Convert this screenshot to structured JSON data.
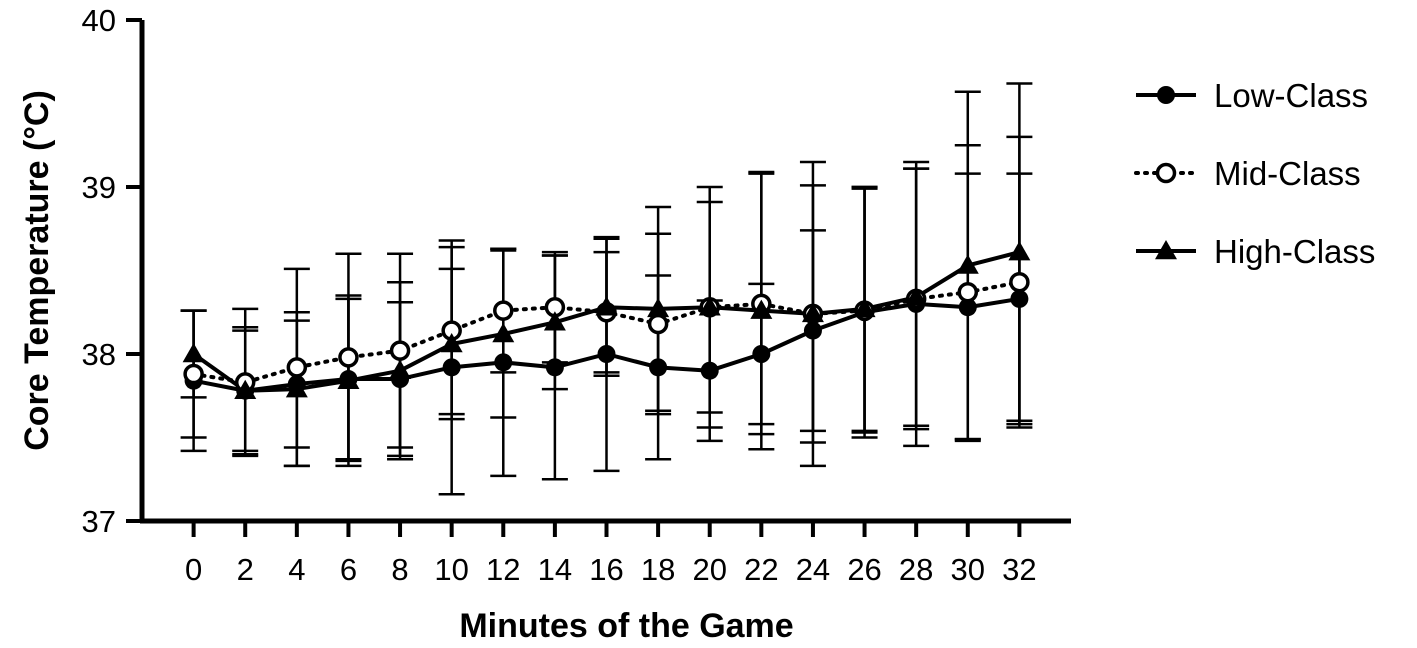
{
  "chart_data": {
    "type": "line",
    "title": "",
    "xlabel": "Minutes of the Game",
    "ylabel": "Core Temperature (°C)",
    "x": [
      0,
      2,
      4,
      6,
      8,
      10,
      12,
      14,
      16,
      18,
      20,
      22,
      24,
      26,
      28,
      30,
      32
    ],
    "xlim": [
      -2,
      34
    ],
    "ylim": [
      37,
      40
    ],
    "yticks": [
      37,
      38,
      39,
      40
    ],
    "grid": false,
    "legend_position": "right",
    "series": [
      {
        "name": "Low-Class",
        "marker": "filled-circle",
        "line_style": "solid",
        "color": "#000000",
        "values": [
          37.84,
          37.78,
          37.82,
          37.85,
          37.85,
          37.92,
          37.95,
          37.92,
          38.0,
          37.92,
          37.9,
          38.0,
          38.14,
          38.25,
          38.3,
          38.28,
          38.33
        ],
        "error": [
          0.42,
          0.36,
          0.38,
          0.48,
          0.46,
          0.76,
          0.68,
          0.67,
          0.7,
          0.55,
          0.42,
          0.42,
          0.6,
          0.75,
          0.85,
          0.8,
          0.75
        ]
      },
      {
        "name": "Mid-Class",
        "marker": "open-circle",
        "line_style": "dotted",
        "color": "#000000",
        "values": [
          37.88,
          37.83,
          37.92,
          37.98,
          38.02,
          38.14,
          38.26,
          38.28,
          38.25,
          38.18,
          38.28,
          38.3,
          38.24,
          38.26,
          38.33,
          38.37,
          38.43
        ],
        "error": [
          0.38,
          0.44,
          0.59,
          0.62,
          0.58,
          0.5,
          0.37,
          0.33,
          0.36,
          0.54,
          0.72,
          0.78,
          0.91,
          0.73,
          0.78,
          0.88,
          0.87
        ]
      },
      {
        "name": "High-Class",
        "marker": "filled-triangle",
        "line_style": "solid",
        "color": "#000000",
        "values": [
          38.0,
          37.78,
          37.79,
          37.84,
          37.9,
          38.06,
          38.12,
          38.19,
          38.28,
          38.27,
          38.28,
          38.26,
          38.24,
          38.27,
          38.34,
          38.53,
          38.61
        ],
        "error": [
          0.26,
          0.38,
          0.46,
          0.51,
          0.53,
          0.45,
          0.5,
          0.4,
          0.41,
          0.61,
          0.63,
          0.83,
          0.77,
          0.73,
          0.77,
          1.04,
          1.01
        ]
      }
    ]
  }
}
